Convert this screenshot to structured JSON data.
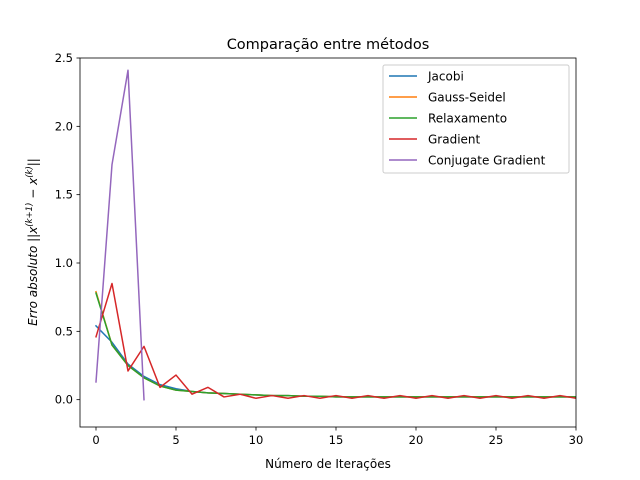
{
  "chart_data": {
    "type": "line",
    "title": "Comparação entre métodos",
    "xlabel": "Número de Iterações",
    "ylabel_main": "Erro absoluto ||x",
    "ylabel_sup1": "(k+1)",
    "ylabel_mid": " − x",
    "ylabel_sup2": "(k)",
    "ylabel_end": "||",
    "xlim": [
      -1,
      30
    ],
    "ylim": [
      -0.2,
      2.5
    ],
    "xticks": [
      0,
      5,
      10,
      15,
      20,
      25,
      30
    ],
    "xtick_labels": [
      "0",
      "5",
      "10",
      "15",
      "20",
      "25",
      "30"
    ],
    "yticks": [
      0.0,
      0.5,
      1.0,
      1.5,
      2.0,
      2.5
    ],
    "ytick_labels": [
      "0.0",
      "0.5",
      "1.0",
      "1.5",
      "2.0",
      "2.5"
    ],
    "grid": false,
    "legend_position": "top-right",
    "series": [
      {
        "name": "Jacobi",
        "color": "#1f77b4",
        "x": [
          0,
          1,
          2,
          3,
          4,
          5,
          6,
          7,
          8,
          9,
          10,
          11,
          12,
          13,
          14,
          15,
          16,
          17,
          18,
          19,
          20,
          21,
          22,
          23,
          24,
          25,
          26,
          27,
          28,
          29,
          30
        ],
        "y": [
          0.54,
          0.42,
          0.26,
          0.17,
          0.11,
          0.08,
          0.06,
          0.05,
          0.045,
          0.04,
          0.035,
          0.03,
          0.03,
          0.025,
          0.025,
          0.02,
          0.02,
          0.02,
          0.02,
          0.02,
          0.02,
          0.02,
          0.02,
          0.02,
          0.02,
          0.02,
          0.02,
          0.02,
          0.02,
          0.02,
          0.02
        ]
      },
      {
        "name": "Gauss-Seidel",
        "color": "#ff7f0e",
        "x": [
          0,
          1,
          2,
          3,
          4,
          5,
          6,
          7,
          8,
          9,
          10,
          11,
          12,
          13,
          14,
          15,
          16,
          17,
          18,
          19,
          20,
          21,
          22,
          23,
          24,
          25,
          26,
          27,
          28,
          29,
          30
        ],
        "y": [
          0.79,
          0.4,
          0.25,
          0.16,
          0.1,
          0.07,
          0.06,
          0.05,
          0.045,
          0.04,
          0.035,
          0.03,
          0.03,
          0.025,
          0.025,
          0.02,
          0.02,
          0.02,
          0.02,
          0.02,
          0.02,
          0.02,
          0.02,
          0.02,
          0.02,
          0.02,
          0.02,
          0.02,
          0.02,
          0.02,
          0.02
        ]
      },
      {
        "name": "Relaxamento",
        "color": "#2ca02c",
        "x": [
          0,
          1,
          2,
          3,
          4,
          5,
          6,
          7,
          8,
          9,
          10,
          11,
          12,
          13,
          14,
          15,
          16,
          17,
          18,
          19,
          20,
          21,
          22,
          23,
          24,
          25,
          26,
          27,
          28,
          29,
          30
        ],
        "y": [
          0.78,
          0.4,
          0.25,
          0.16,
          0.1,
          0.07,
          0.06,
          0.05,
          0.045,
          0.04,
          0.035,
          0.03,
          0.03,
          0.025,
          0.025,
          0.02,
          0.02,
          0.02,
          0.02,
          0.02,
          0.02,
          0.02,
          0.02,
          0.02,
          0.02,
          0.02,
          0.02,
          0.02,
          0.02,
          0.02,
          0.02
        ]
      },
      {
        "name": "Gradient",
        "color": "#d62728",
        "x": [
          0,
          1,
          2,
          3,
          4,
          5,
          6,
          7,
          8,
          9,
          10,
          11,
          12,
          13,
          14,
          15,
          16,
          17,
          18,
          19,
          20,
          21,
          22,
          23,
          24,
          25,
          26,
          27,
          28,
          29,
          30
        ],
        "y": [
          0.46,
          0.85,
          0.21,
          0.39,
          0.09,
          0.18,
          0.04,
          0.09,
          0.02,
          0.04,
          0.01,
          0.03,
          0.01,
          0.03,
          0.01,
          0.03,
          0.01,
          0.03,
          0.01,
          0.03,
          0.01,
          0.03,
          0.01,
          0.03,
          0.01,
          0.03,
          0.01,
          0.03,
          0.01,
          0.03,
          0.01
        ]
      },
      {
        "name": "Conjugate Gradient",
        "color": "#9467bd",
        "x": [
          0,
          1,
          2,
          3
        ],
        "y": [
          0.13,
          1.72,
          2.41,
          0.0
        ]
      }
    ]
  }
}
